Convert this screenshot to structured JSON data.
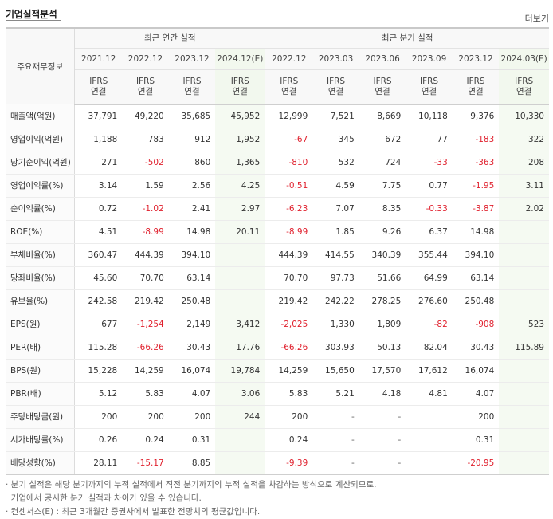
{
  "header": {
    "title": "기업실적분석",
    "more_label": "더보기"
  },
  "table": {
    "corner_label": "주요재무정보",
    "annual_group": "최근 연간 실적",
    "quarter_group": "최근 분기 실적",
    "ifrs_line1": "IFRS",
    "ifrs_line2": "연결",
    "annual_periods": [
      "2021.12",
      "2022.12",
      "2023.12",
      "2024.12(E)"
    ],
    "quarter_periods": [
      "2022.12",
      "2023.03",
      "2023.06",
      "2023.09",
      "2023.12",
      "2024.03(E)"
    ],
    "rows": [
      {
        "label": "매출액(억원)",
        "values": [
          "37,791",
          "49,220",
          "35,685",
          "45,952",
          "12,999",
          "7,521",
          "8,669",
          "10,118",
          "9,376",
          "10,330"
        ]
      },
      {
        "label": "영업이익(억원)",
        "values": [
          "1,188",
          "783",
          "912",
          "1,952",
          "-67",
          "345",
          "672",
          "77",
          "-183",
          "322"
        ]
      },
      {
        "label": "당기순이익(억원)",
        "values": [
          "271",
          "-502",
          "860",
          "1,365",
          "-810",
          "532",
          "724",
          "-33",
          "-363",
          "208"
        ]
      },
      {
        "label": "영업이익률(%)",
        "values": [
          "3.14",
          "1.59",
          "2.56",
          "4.25",
          "-0.51",
          "4.59",
          "7.75",
          "0.77",
          "-1.95",
          "3.11"
        ]
      },
      {
        "label": "순이익률(%)",
        "values": [
          "0.72",
          "-1.02",
          "2.41",
          "2.97",
          "-6.23",
          "7.07",
          "8.35",
          "-0.33",
          "-3.87",
          "2.02"
        ]
      },
      {
        "label": "ROE(%)",
        "values": [
          "4.51",
          "-8.99",
          "14.98",
          "20.11",
          "-8.99",
          "1.85",
          "9.26",
          "6.37",
          "14.98",
          ""
        ]
      },
      {
        "label": "부채비율(%)",
        "values": [
          "360.47",
          "444.39",
          "394.10",
          "",
          "444.39",
          "414.55",
          "340.39",
          "355.44",
          "394.10",
          ""
        ]
      },
      {
        "label": "당좌비율(%)",
        "values": [
          "45.60",
          "70.70",
          "63.14",
          "",
          "70.70",
          "97.73",
          "51.66",
          "64.99",
          "63.14",
          ""
        ]
      },
      {
        "label": "유보율(%)",
        "values": [
          "242.58",
          "219.42",
          "250.48",
          "",
          "219.42",
          "242.22",
          "278.25",
          "276.60",
          "250.48",
          ""
        ]
      },
      {
        "label": "EPS(원)",
        "values": [
          "677",
          "-1,254",
          "2,149",
          "3,412",
          "-2,025",
          "1,330",
          "1,809",
          "-82",
          "-908",
          "523"
        ]
      },
      {
        "label": "PER(배)",
        "values": [
          "115.28",
          "-66.26",
          "30.43",
          "17.76",
          "-66.26",
          "303.93",
          "50.13",
          "82.04",
          "30.43",
          "115.89"
        ]
      },
      {
        "label": "BPS(원)",
        "values": [
          "15,228",
          "14,259",
          "16,074",
          "19,784",
          "14,259",
          "15,650",
          "17,570",
          "17,612",
          "16,074",
          ""
        ]
      },
      {
        "label": "PBR(배)",
        "values": [
          "5.12",
          "5.83",
          "4.07",
          "3.06",
          "5.83",
          "5.21",
          "4.18",
          "4.81",
          "4.07",
          ""
        ]
      },
      {
        "label": "주당배당금(원)",
        "values": [
          "200",
          "200",
          "200",
          "244",
          "200",
          "-",
          "-",
          "",
          "200",
          ""
        ]
      },
      {
        "label": "시가배당률(%)",
        "values": [
          "0.26",
          "0.24",
          "0.31",
          "",
          "0.24",
          "-",
          "-",
          "",
          "0.31",
          ""
        ]
      },
      {
        "label": "배당성향(%)",
        "values": [
          "28.11",
          "-15.17",
          "8.85",
          "",
          "-9.39",
          "-",
          "-",
          "",
          "-20.95",
          ""
        ]
      }
    ]
  },
  "notes": {
    "line1": "· 분기 실적은 해당 분기까지의 누적 실적에서 직전 분기까지의 누적 실적을 차감하는 방식으로 계산되므로,",
    "line2": "  기업에서 공시한 분기 실적과 차이가 있을 수 있습니다.",
    "line3": "· 컨센서스(E) : 최근 3개월간 증권사에서 발표한 전망치의 평균값입니다."
  },
  "colors": {
    "negative": "#e0212e",
    "ifrs": "#e8741a",
    "estimate_bg": "#f2f8ee"
  }
}
